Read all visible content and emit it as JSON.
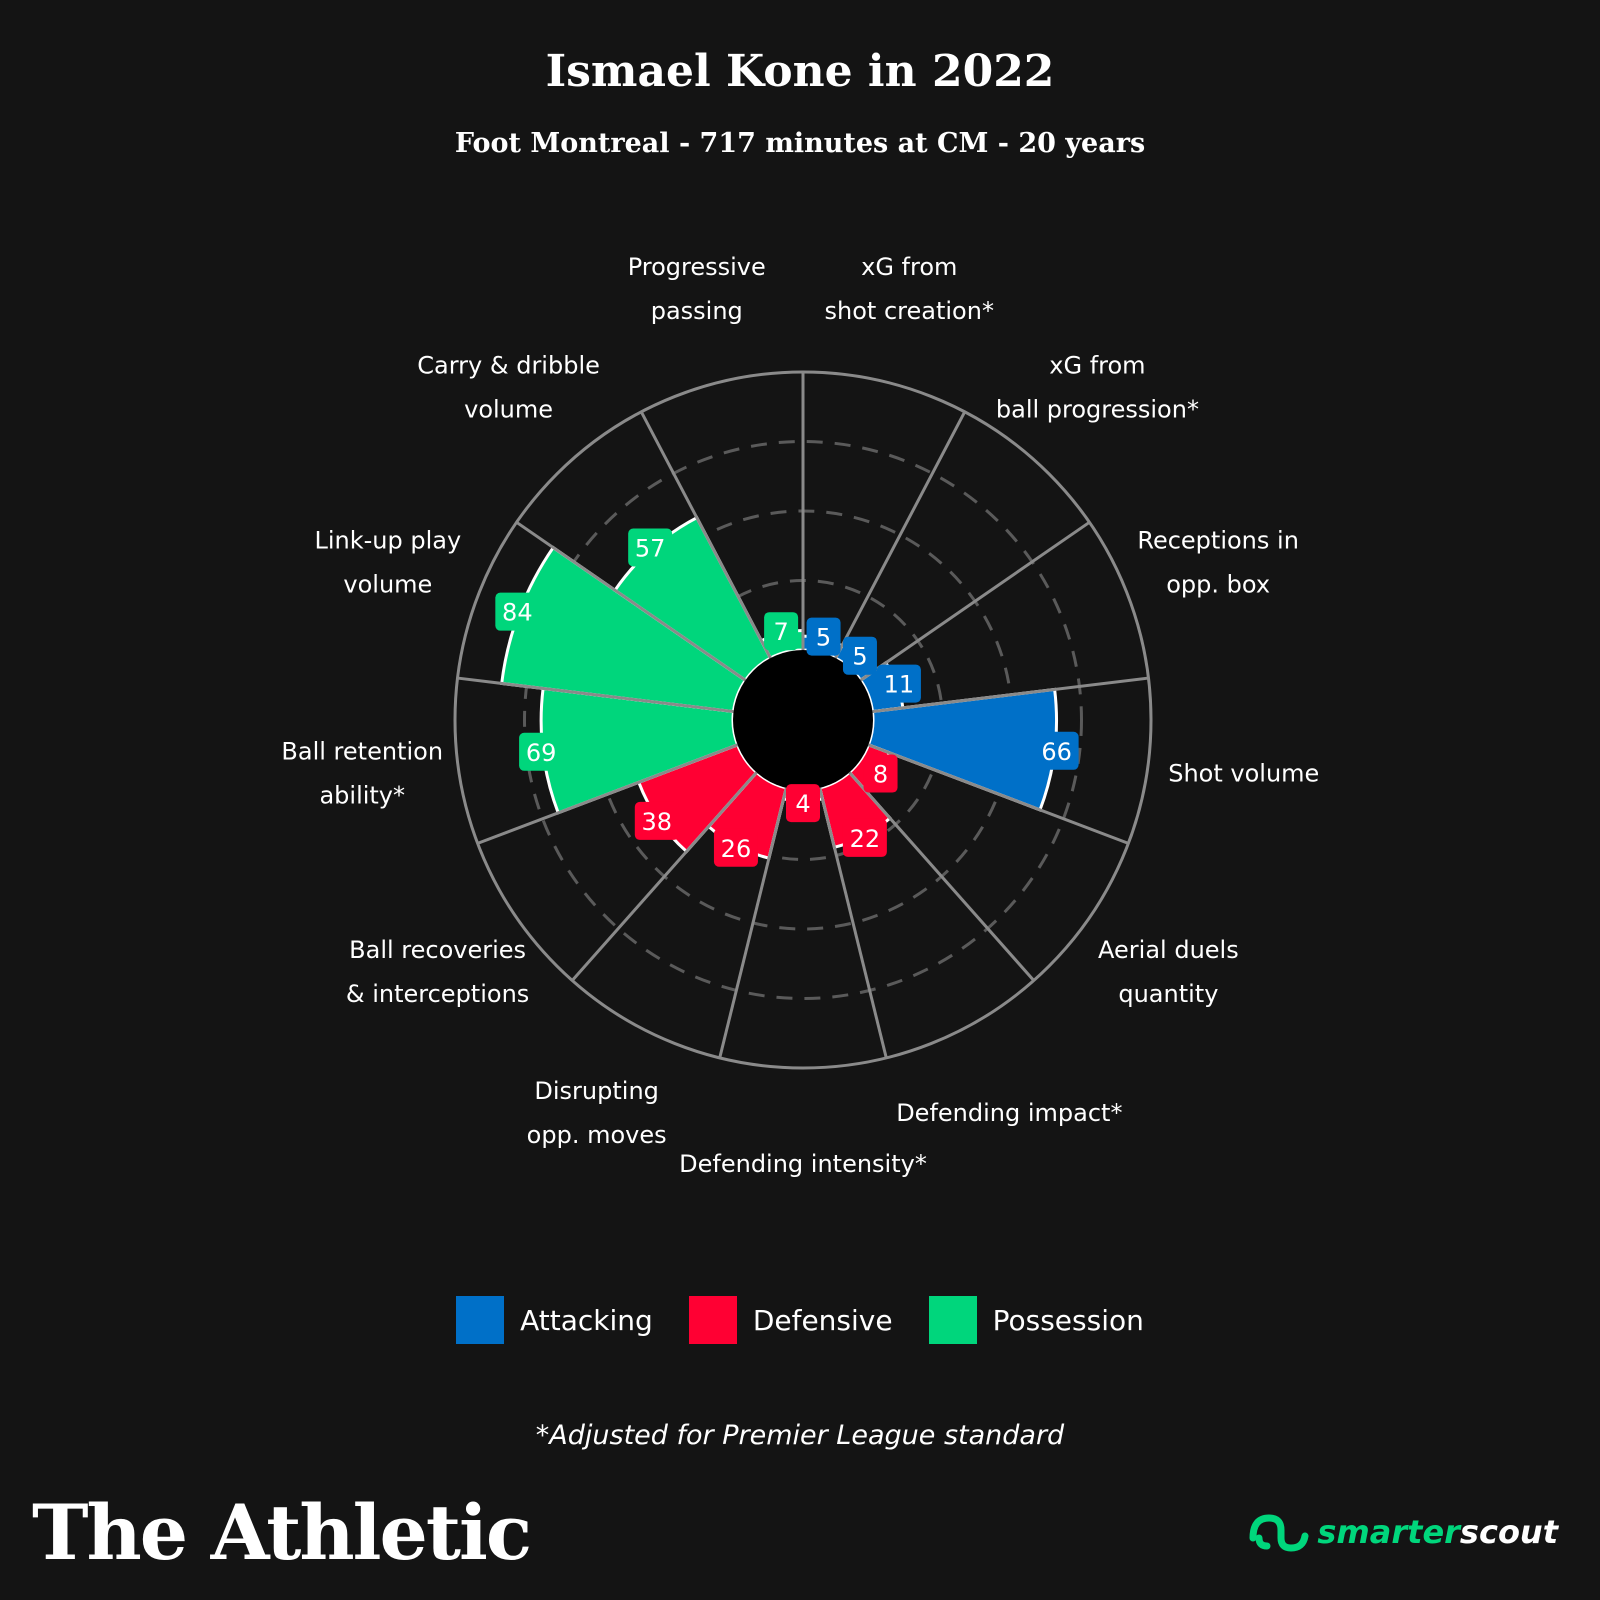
{
  "title": "Ismael Kone in 2022",
  "subtitle": "Foot Montreal - 717 minutes at CM - 20 years",
  "footnote": "*Adjusted for Premier League standard",
  "brand": "The Athletic",
  "partner": {
    "part1": "smarter",
    "part2": "scout",
    "icon": "smarterscout-logo-icon"
  },
  "legend": [
    {
      "label": "Attacking",
      "color": "#0070c8"
    },
    {
      "label": "Defensive",
      "color": "#ff0033"
    },
    {
      "label": "Possession",
      "color": "#00d67c"
    }
  ],
  "chart_data": {
    "type": "polar-bar",
    "rmax": 100,
    "grid": "dashed rings",
    "categories": [
      {
        "label": [
          "xG from",
          "shot creation*"
        ],
        "value": 5,
        "group": "Attacking"
      },
      {
        "label": [
          "xG from",
          "ball progression*"
        ],
        "value": 5,
        "group": "Attacking"
      },
      {
        "label": [
          "Receptions in",
          "opp. box"
        ],
        "value": 11,
        "group": "Attacking"
      },
      {
        "label": [
          "Shot volume"
        ],
        "value": 66,
        "group": "Attacking"
      },
      {
        "label": [
          "Aerial duels",
          "quantity"
        ],
        "value": 8,
        "group": "Defensive"
      },
      {
        "label": [
          "Defending impact*"
        ],
        "value": 22,
        "group": "Defensive"
      },
      {
        "label": [
          "Defending intensity*"
        ],
        "value": 4,
        "group": "Defensive"
      },
      {
        "label": [
          "Disrupting",
          "opp. moves"
        ],
        "value": 26,
        "group": "Defensive"
      },
      {
        "label": [
          "Ball recoveries",
          "& interceptions"
        ],
        "value": 38,
        "group": "Defensive"
      },
      {
        "label": [
          "Ball retention",
          "ability*"
        ],
        "value": 69,
        "group": "Possession"
      },
      {
        "label": [
          "Link-up play",
          "volume"
        ],
        "value": 84,
        "group": "Possession"
      },
      {
        "label": [
          "Carry & dribble",
          "volume"
        ],
        "value": 57,
        "group": "Possession"
      },
      {
        "label": [
          "Progressive",
          "passing"
        ],
        "value": 7,
        "group": "Possession"
      }
    ]
  }
}
